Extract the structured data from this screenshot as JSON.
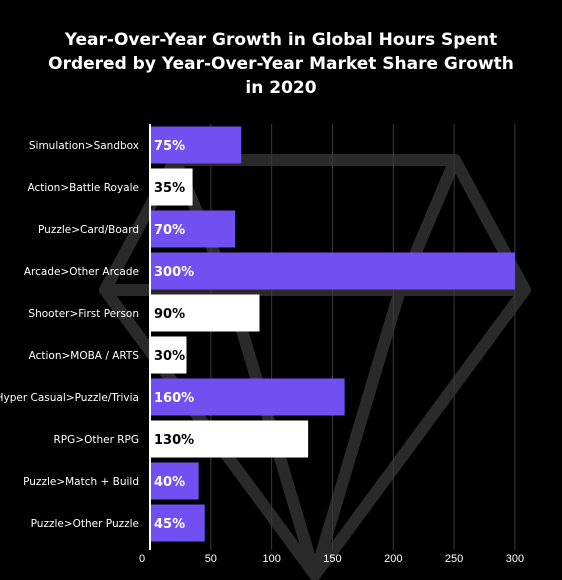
{
  "chart_data": {
    "type": "bar",
    "orientation": "horizontal",
    "title_lines": [
      "Year-Over-Year Growth in Global Hours Spent",
      "Ordered by Year-Over-Year Market Share Growth",
      "in 2020"
    ],
    "categories": [
      "Simulation>Sandbox",
      "Action>Battle Royale",
      "Puzzle>Card/Board",
      "Arcade>Other Arcade",
      "Shooter>First Person",
      "Action>MOBA / ARTS",
      "Hyper Casual>Puzzle/Trivia",
      "RPG>Other RPG",
      "Puzzle>Match + Build",
      "Puzzle>Other Puzzle"
    ],
    "values": [
      75,
      35,
      70,
      300,
      90,
      30,
      160,
      130,
      40,
      45
    ],
    "labels": [
      "75%",
      "35%",
      "70%",
      "300%",
      "90%",
      "30%",
      "160%",
      "130%",
      "40%",
      "45%"
    ],
    "bar_styles": [
      "purple",
      "white",
      "purple",
      "purple",
      "white",
      "white",
      "purple",
      "white",
      "purple",
      "purple"
    ],
    "colors": {
      "purple": "#7050f0",
      "white": "#ffffff",
      "background": "#000000",
      "grid": "#3a3a3a"
    },
    "x_ticks": [
      0,
      50,
      100,
      150,
      200,
      250,
      300
    ],
    "xlim": [
      0,
      305
    ],
    "grid": true,
    "legend": "none"
  }
}
